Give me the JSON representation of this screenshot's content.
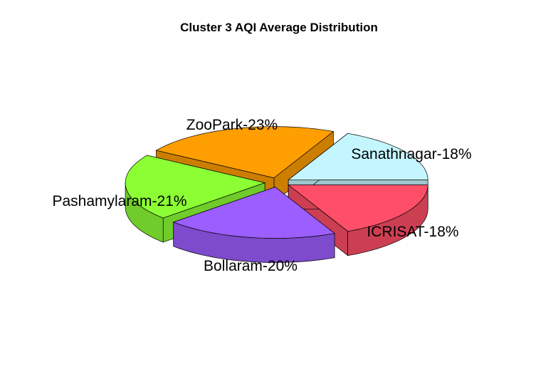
{
  "chart_data": {
    "type": "pie",
    "title": "Cluster 3 AQI Average Distribution",
    "slices": [
      {
        "name": "Sanathnagar",
        "label": "Sanathnagar-18%",
        "value": 18,
        "color": "#c4f6ff"
      },
      {
        "name": "ZooPark",
        "label": "ZooPark-23%",
        "value": 23,
        "color": "#ff9e00"
      },
      {
        "name": "Pashamylaram",
        "label": "Pashamylaram-21%",
        "value": 21,
        "color": "#8cff34"
      },
      {
        "name": "Bollaram",
        "label": "Bollaram-20%",
        "value": 20,
        "color": "#9c5eff"
      },
      {
        "name": "ICRISAT",
        "label": "ICRISAT-18%",
        "value": 18,
        "color": "#ff4f68"
      }
    ],
    "style": "3d-exploded"
  }
}
